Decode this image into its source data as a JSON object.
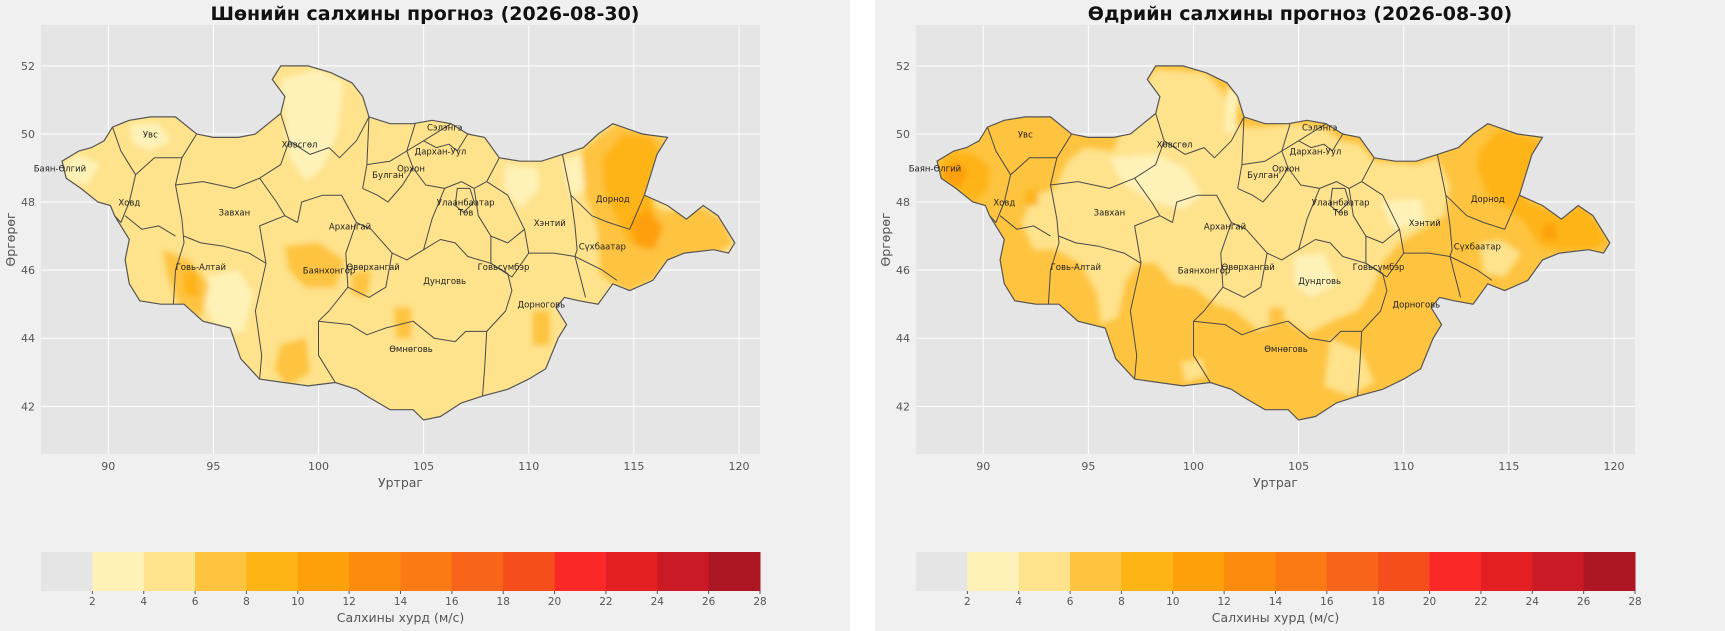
{
  "figure": {
    "panels": [
      {
        "title": "Шөнийн салхины прогноз (2026-08-30)",
        "xlabel": "Уртраг",
        "ylabel": "Өргөрөг",
        "colorbar_label": "Салхины хурд (м/с)"
      },
      {
        "title": "Өдрийн салхины прогноз (2026-08-30)",
        "xlabel": "Уртраг",
        "ylabel": "Өргөрөг",
        "colorbar_label": "Салхины хурд (м/с)"
      }
    ],
    "x_ticks": [
      "90",
      "95",
      "100",
      "105",
      "110",
      "115",
      "120"
    ],
    "y_ticks": [
      "52",
      "50",
      "48",
      "46",
      "44",
      "42"
    ],
    "colorbar_ticks": [
      "2",
      "4",
      "6",
      "8",
      "10",
      "12",
      "14",
      "16",
      "18",
      "20",
      "22",
      "24",
      "26",
      "28"
    ],
    "colorbar_colors": [
      "#e5e5e5",
      "#fff2b8",
      "#fee28c",
      "#fec33f",
      "#feb414",
      "#fea00a",
      "#fd8c0e",
      "#fb7a14",
      "#f86419",
      "#f54d1c",
      "#fb2828",
      "#e31f24",
      "#c91a25",
      "#ad1723"
    ],
    "province_labels": [
      "Увс",
      "Баян-Өлгий",
      "Ховд",
      "Завхан",
      "Говь-Алтай",
      "Хөвсгөл",
      "Архангай",
      "Баянхонгор",
      "Өвөрхангай",
      "Орхон",
      "Булган",
      "Сэлэнгэ",
      "Дархан-Уул",
      "Улаанбаатар",
      "Төв",
      "Хэнтий",
      "Дорнод",
      "Сүхбаатар",
      "Говьсүмбэр",
      "Дундговь",
      "Дорноговь",
      "Өмнөговь"
    ]
  },
  "chart_data": [
    {
      "type": "heatmap",
      "title": "Шөнийн салхины прогноз (2026-08-30)",
      "xlabel": "Уртраг",
      "ylabel": "Өргөрөг",
      "xlim": [
        86.8,
        121
      ],
      "ylim": [
        40.6,
        53.2
      ],
      "colorbar": {
        "label": "Салхины хурд (м/с)",
        "levels": [
          0,
          2,
          4,
          6,
          8,
          10,
          12,
          14,
          16,
          18,
          20,
          22,
          24,
          26,
          28
        ]
      },
      "dominant_range_ms": [
        4,
        6
      ],
      "features": [
        {
          "region": "Дорнод",
          "range_ms": [
            8,
            12
          ]
        },
        {
          "region": "Сүхбаатар",
          "range_ms": [
            6,
            8
          ]
        },
        {
          "region": "Хөвсгөл",
          "range_ms": [
            2,
            4
          ]
        },
        {
          "region": "Говь-Алтай",
          "range_ms": [
            6,
            10
          ]
        }
      ]
    },
    {
      "type": "heatmap",
      "title": "Өдрийн салхины прогноз (2026-08-30)",
      "xlabel": "Уртраг",
      "ylabel": "Өргөрөг",
      "xlim": [
        86.8,
        121
      ],
      "ylim": [
        40.6,
        53.2
      ],
      "colorbar": {
        "label": "Салхины хурд (м/с)",
        "levels": [
          0,
          2,
          4,
          6,
          8,
          10,
          12,
          14,
          16,
          18,
          20,
          22,
          24,
          26,
          28
        ]
      },
      "dominant_range_ms": [
        4,
        8
      ],
      "features": [
        {
          "region": "Дорнод",
          "range_ms": [
            8,
            12
          ]
        },
        {
          "region": "Баян-Өлгий",
          "range_ms": [
            8,
            12
          ]
        },
        {
          "region": "Өмнөговь",
          "range_ms": [
            6,
            8
          ]
        },
        {
          "region": "Дорноговь",
          "range_ms": [
            6,
            8
          ]
        }
      ]
    }
  ]
}
